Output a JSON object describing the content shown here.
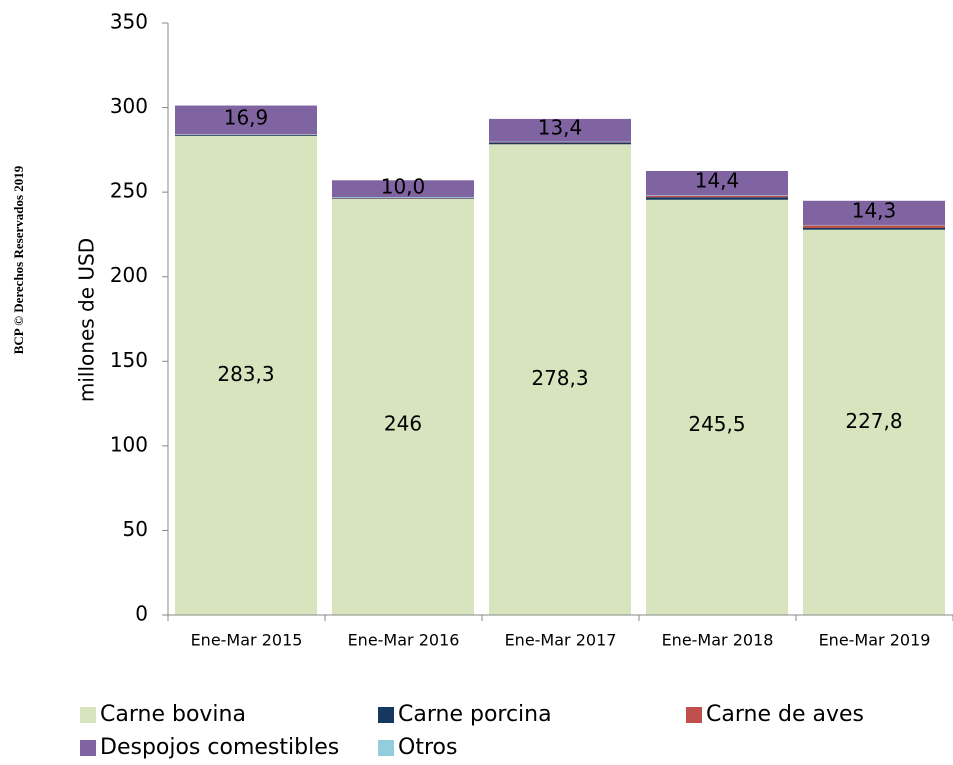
{
  "chart_data": {
    "type": "bar",
    "stacked": true,
    "side_note": "BCP © Derechos Reservados 2019",
    "y_label": "millones de  USD",
    "categories": [
      "Ene-Mar 2015",
      "Ene-Mar 2016",
      "Ene-Mar 2017",
      "Ene-Mar 2018",
      "Ene-Mar 2019"
    ],
    "series": [
      {
        "name": "Carne bovina",
        "color": "#d7e4bd",
        "values": [
          283.3,
          246,
          278.3,
          245.5,
          227.8
        ],
        "value_labels": [
          "283,3",
          "246",
          "278,3",
          "245,5",
          "227,8"
        ]
      },
      {
        "name": "Carne porcina",
        "color": "#17375e",
        "values": [
          0.5,
          0.3,
          1.0,
          1.5,
          1.0
        ]
      },
      {
        "name": "Carne de aves",
        "color": "#c0504d",
        "values": [
          0.2,
          0.2,
          0.3,
          0.8,
          1.5
        ]
      },
      {
        "name": "Despojos comestibles",
        "color": "#8064a2",
        "values": [
          16.9,
          10.0,
          13.4,
          14.4,
          14.3
        ],
        "value_labels": [
          "16,9",
          "10,0",
          "13,4",
          "14,4",
          "14,3"
        ]
      },
      {
        "name": "Otros",
        "color": "#93cddd",
        "values": [
          0.3,
          0.5,
          0.3,
          0.3,
          0.3
        ]
      }
    ],
    "ylim": [
      0,
      350
    ],
    "yticks": [
      0,
      50,
      100,
      150,
      200,
      250,
      300,
      350
    ],
    "grid": false
  }
}
